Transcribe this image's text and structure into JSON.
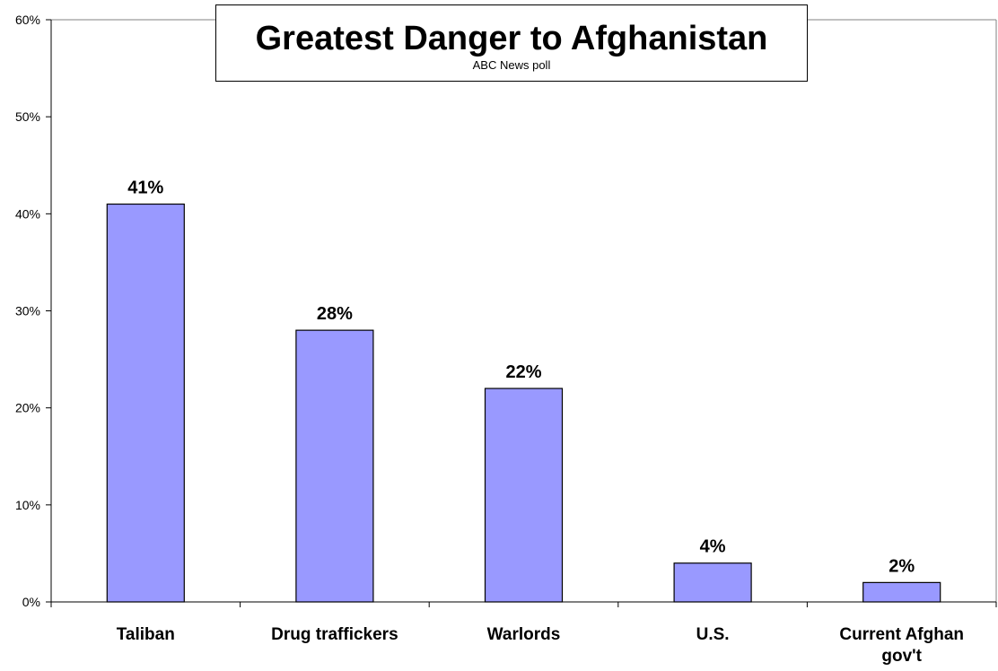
{
  "chart_data": {
    "type": "bar",
    "title": "Greatest Danger to Afghanistan",
    "subtitle": "ABC News poll",
    "categories": [
      "Taliban",
      "Drug traffickers",
      "Warlords",
      "U.S.",
      "Current Afghan gov't"
    ],
    "values": [
      41,
      28,
      22,
      4,
      2
    ],
    "value_labels": [
      "41%",
      "28%",
      "22%",
      "4%",
      "2%"
    ],
    "ylim": [
      0,
      60
    ],
    "yticks": [
      0,
      10,
      20,
      30,
      40,
      50,
      60
    ],
    "ytick_labels": [
      "0%",
      "10%",
      "20%",
      "30%",
      "40%",
      "50%",
      "60%"
    ],
    "xlabel": "",
    "ylabel": "",
    "grid": false,
    "legend": "none",
    "bar_color": "#9999ff",
    "bar_edge_color": "#000000"
  }
}
